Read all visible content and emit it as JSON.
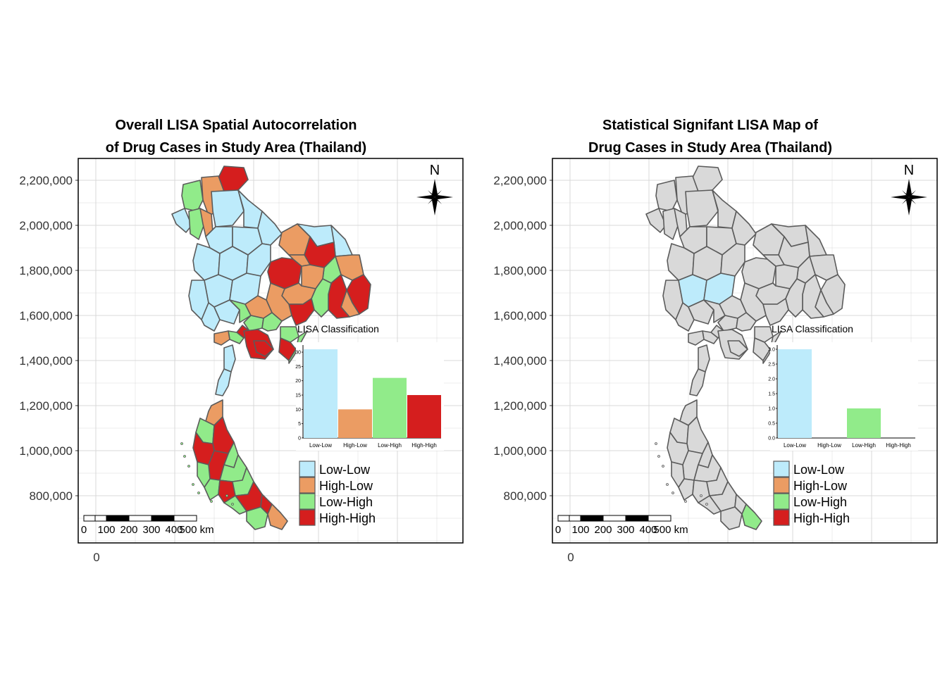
{
  "colors": {
    "low_low": "#BDEBFB",
    "high_low": "#EB9C63",
    "low_high": "#91EB8A",
    "high_high": "#D51E1E",
    "not_significant": "#D9D9D9",
    "boundary": "#5B5B5B",
    "grid": "#D9D9D9"
  },
  "panels": [
    {
      "id": "overall",
      "title_line1": "Overall LISA Spatial Autocorrelation",
      "title_line2": "of Drug Cases in Study Area (Thailand)",
      "y_ticks": [
        "2,200,000",
        "2,000,000",
        "1,800,000",
        "1,600,000",
        "1,400,000",
        "1,200,000",
        "1,000,000",
        "800,000"
      ],
      "x_tick": "0",
      "north_label": "N",
      "scale_labels": [
        "0",
        "100",
        "200",
        "300",
        "400",
        "500 km"
      ],
      "inset": {
        "title": "LISA Classification",
        "y_ticks": [
          "0",
          "5",
          "10",
          "15",
          "20",
          "25",
          "30"
        ],
        "categories": [
          "Low-Low",
          "High-Low",
          "Low-High",
          "High-High"
        ],
        "values": [
          31,
          10,
          21,
          15
        ],
        "ymax": 31
      },
      "legend": [
        "Low-Low",
        "High-Low",
        "Low-High",
        "High-High"
      ]
    },
    {
      "id": "significant",
      "title_line1": "Statistical Signifant LISA Map of",
      "title_line2": "Drug Cases in Study Area (Thailand)",
      "y_ticks": [
        "2,200,000",
        "2,000,000",
        "1,800,000",
        "1,600,000",
        "1,400,000",
        "1,200,000",
        "1,000,000",
        "800,000"
      ],
      "x_tick": "0",
      "north_label": "N",
      "scale_labels": [
        "0",
        "100",
        "200",
        "300",
        "400",
        "500 km"
      ],
      "inset": {
        "title": "LISA Classification",
        "y_ticks": [
          "0.0",
          "0.5",
          "1.0",
          "1.5",
          "2.0",
          "2.5",
          "3.0"
        ],
        "categories": [
          "Low-Low",
          "High-Low",
          "Low-High",
          "High-High"
        ],
        "values": [
          3,
          0,
          1,
          0
        ],
        "ymax": 3
      },
      "legend": [
        "Low-Low",
        "High-Low",
        "Low-High",
        "High-High"
      ]
    }
  ]
}
